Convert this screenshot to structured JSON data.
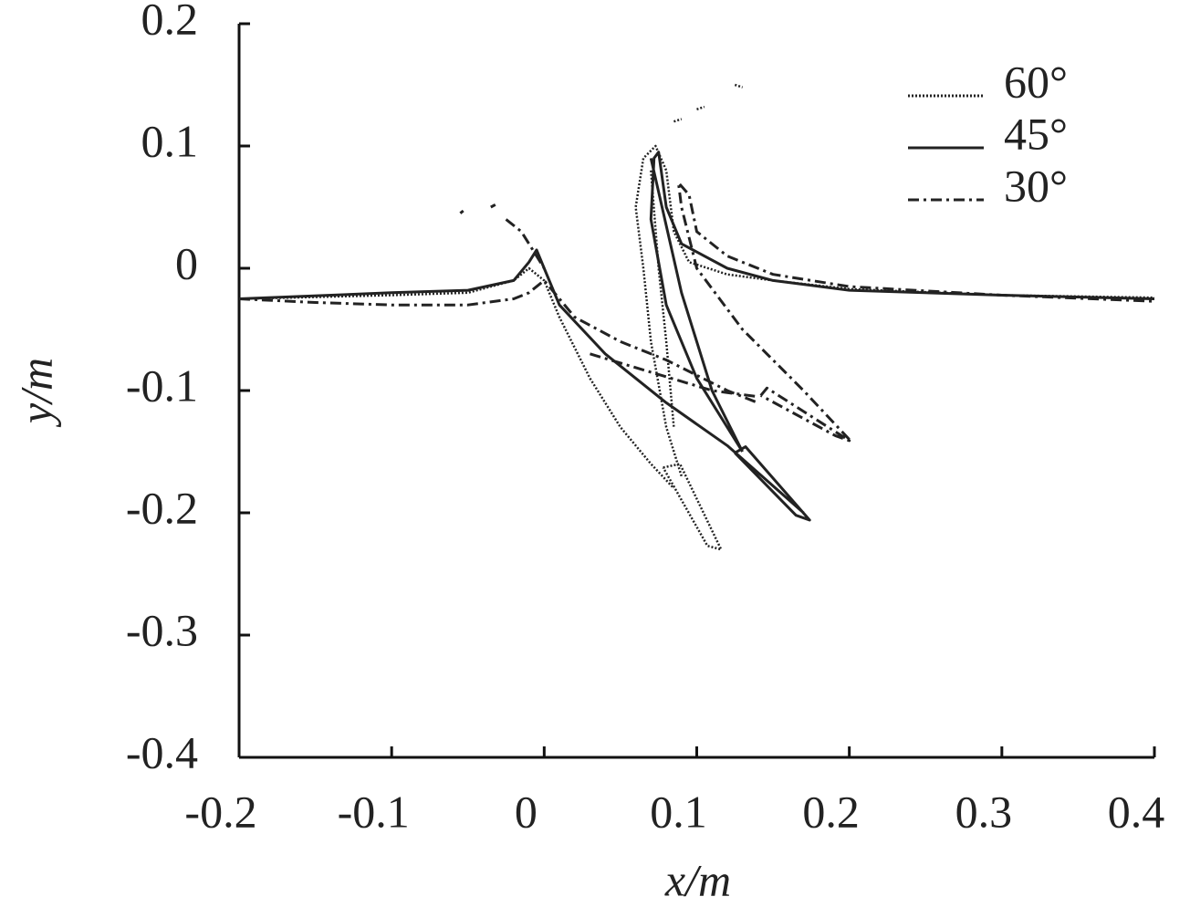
{
  "chart_data": {
    "type": "line",
    "xlabel": "x/m",
    "ylabel": "y/m",
    "xlim": [
      -0.2,
      0.4
    ],
    "xticks": [
      -0.2,
      -0.1,
      0,
      0.1,
      0.2,
      0.3,
      0.4
    ],
    "ylim": [
      -0.4,
      0.2
    ],
    "yticks": [
      0.2,
      0.1,
      0,
      -0.1,
      -0.2,
      -0.3,
      -0.4
    ],
    "legend": "upper right",
    "series": [
      {
        "name": "60°",
        "color": "#222",
        "style": "dotted",
        "x": [
          -0.2,
          -0.1,
          -0.05,
          -0.02,
          -0.01,
          0.0,
          0.01,
          0.03,
          0.05,
          0.07,
          0.085,
          null,
          0.078,
          0.089,
          0.116,
          0.107,
          0.078,
          null,
          0.09,
          0.08,
          0.07,
          0.065,
          0.06,
          0.065,
          0.073,
          0.08,
          0.085,
          0.095,
          0.12,
          0.15,
          0.2,
          0.3,
          0.4,
          null,
          0.07,
          0.075,
          0.08,
          0.085,
          null,
          0.125,
          0.13,
          null,
          0.085,
          0.09,
          null,
          0.1,
          0.105
        ],
        "values": [
          -0.025,
          -0.022,
          -0.02,
          -0.01,
          0.0,
          -0.01,
          -0.04,
          -0.09,
          -0.13,
          -0.16,
          -0.18,
          null,
          -0.163,
          -0.16,
          -0.23,
          -0.227,
          -0.163,
          null,
          -0.17,
          -0.13,
          -0.06,
          0.0,
          0.05,
          0.09,
          0.1,
          0.08,
          0.03,
          0.005,
          -0.005,
          -0.01,
          -0.017,
          -0.022,
          -0.024,
          null,
          0.08,
          0.0,
          -0.06,
          -0.13,
          null,
          0.15,
          0.148,
          null,
          0.12,
          0.122,
          null,
          0.13,
          0.132
        ]
      },
      {
        "name": "45°",
        "color": "#222",
        "style": "solid",
        "x": [
          -0.2,
          -0.1,
          -0.05,
          -0.02,
          -0.01,
          -0.005,
          0.0,
          0.01,
          0.04,
          0.08,
          0.12,
          0.17,
          null,
          0.125,
          0.132,
          0.174,
          0.165,
          0.125,
          null,
          0.13,
          0.1,
          0.08,
          0.07,
          0.072,
          0.075,
          0.08,
          0.09,
          0.12,
          0.15,
          0.2,
          0.3,
          0.4,
          null,
          0.07,
          0.09,
          0.11,
          0.13
        ],
        "values": [
          -0.025,
          -0.02,
          -0.018,
          -0.01,
          0.005,
          0.015,
          0.0,
          -0.03,
          -0.07,
          -0.11,
          -0.145,
          -0.2,
          null,
          -0.151,
          -0.146,
          -0.206,
          -0.202,
          -0.151,
          null,
          -0.15,
          -0.09,
          -0.03,
          0.04,
          0.09,
          0.095,
          0.05,
          0.02,
          0.0,
          -0.01,
          -0.018,
          -0.022,
          -0.025,
          null,
          0.09,
          -0.02,
          -0.1,
          -0.15
        ]
      },
      {
        "name": "30°",
        "color": "#222",
        "style": "dashdot",
        "x": [
          -0.2,
          -0.15,
          -0.1,
          -0.05,
          -0.02,
          -0.01,
          0.0,
          0.02,
          0.05,
          0.08,
          0.12,
          0.14,
          null,
          0.142,
          0.146,
          0.2,
          0.191,
          0.142,
          null,
          0.2,
          0.17,
          0.13,
          0.1,
          0.09,
          0.088,
          0.095,
          0.1,
          0.12,
          0.15,
          0.2,
          0.3,
          0.4,
          null,
          -0.025,
          -0.015,
          -0.005,
          0.0,
          null,
          0.03,
          0.07,
          0.11,
          0.14,
          null,
          -0.035,
          -0.032,
          null,
          -0.055,
          -0.053
        ],
        "values": [
          -0.025,
          -0.028,
          -0.03,
          -0.03,
          -0.025,
          -0.02,
          -0.01,
          -0.04,
          -0.06,
          -0.075,
          -0.1,
          -0.11,
          null,
          -0.104,
          -0.098,
          -0.141,
          -0.137,
          -0.104,
          null,
          -0.14,
          -0.1,
          -0.05,
          0.0,
          0.05,
          0.07,
          0.06,
          0.03,
          0.01,
          -0.005,
          -0.015,
          -0.022,
          -0.027,
          null,
          0.04,
          0.03,
          0.01,
          0.0,
          null,
          -0.07,
          -0.085,
          -0.1,
          -0.105,
          null,
          0.05,
          0.052,
          null,
          0.045,
          0.047
        ]
      }
    ]
  }
}
